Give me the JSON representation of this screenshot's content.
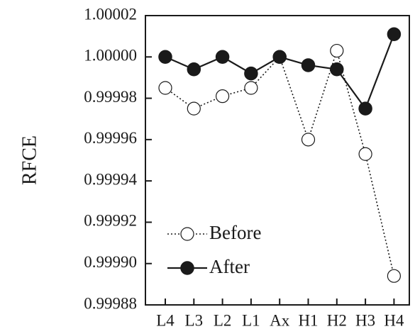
{
  "chart_data": {
    "type": "line",
    "title": "",
    "xlabel": "",
    "ylabel": "RFCE",
    "categories": [
      "L4",
      "L3",
      "L2",
      "L1",
      "Ax",
      "H1",
      "H2",
      "H3",
      "H4"
    ],
    "ylim": [
      0.99988,
      1.00002
    ],
    "yticks": [
      "0.99988",
      "0.99990",
      "0.99992",
      "0.99994",
      "0.99996",
      "0.99998",
      "1.00000",
      "1.00002"
    ],
    "grid": false,
    "legend_position": "bottom-left",
    "series": [
      {
        "name": "Before",
        "style": "dotted",
        "marker": "open-circle",
        "color": "#1a1a1a",
        "values": [
          0.999985,
          0.999975,
          0.999981,
          0.999985,
          1.0,
          0.99996,
          1.000003,
          0.999953,
          0.999894
        ]
      },
      {
        "name": "After",
        "style": "solid",
        "marker": "filled-circle",
        "color": "#1a1a1a",
        "values": [
          1.0,
          0.999994,
          1.0,
          0.999992,
          1.0,
          0.999996,
          0.999994,
          0.999975,
          1.000011
        ]
      }
    ]
  }
}
